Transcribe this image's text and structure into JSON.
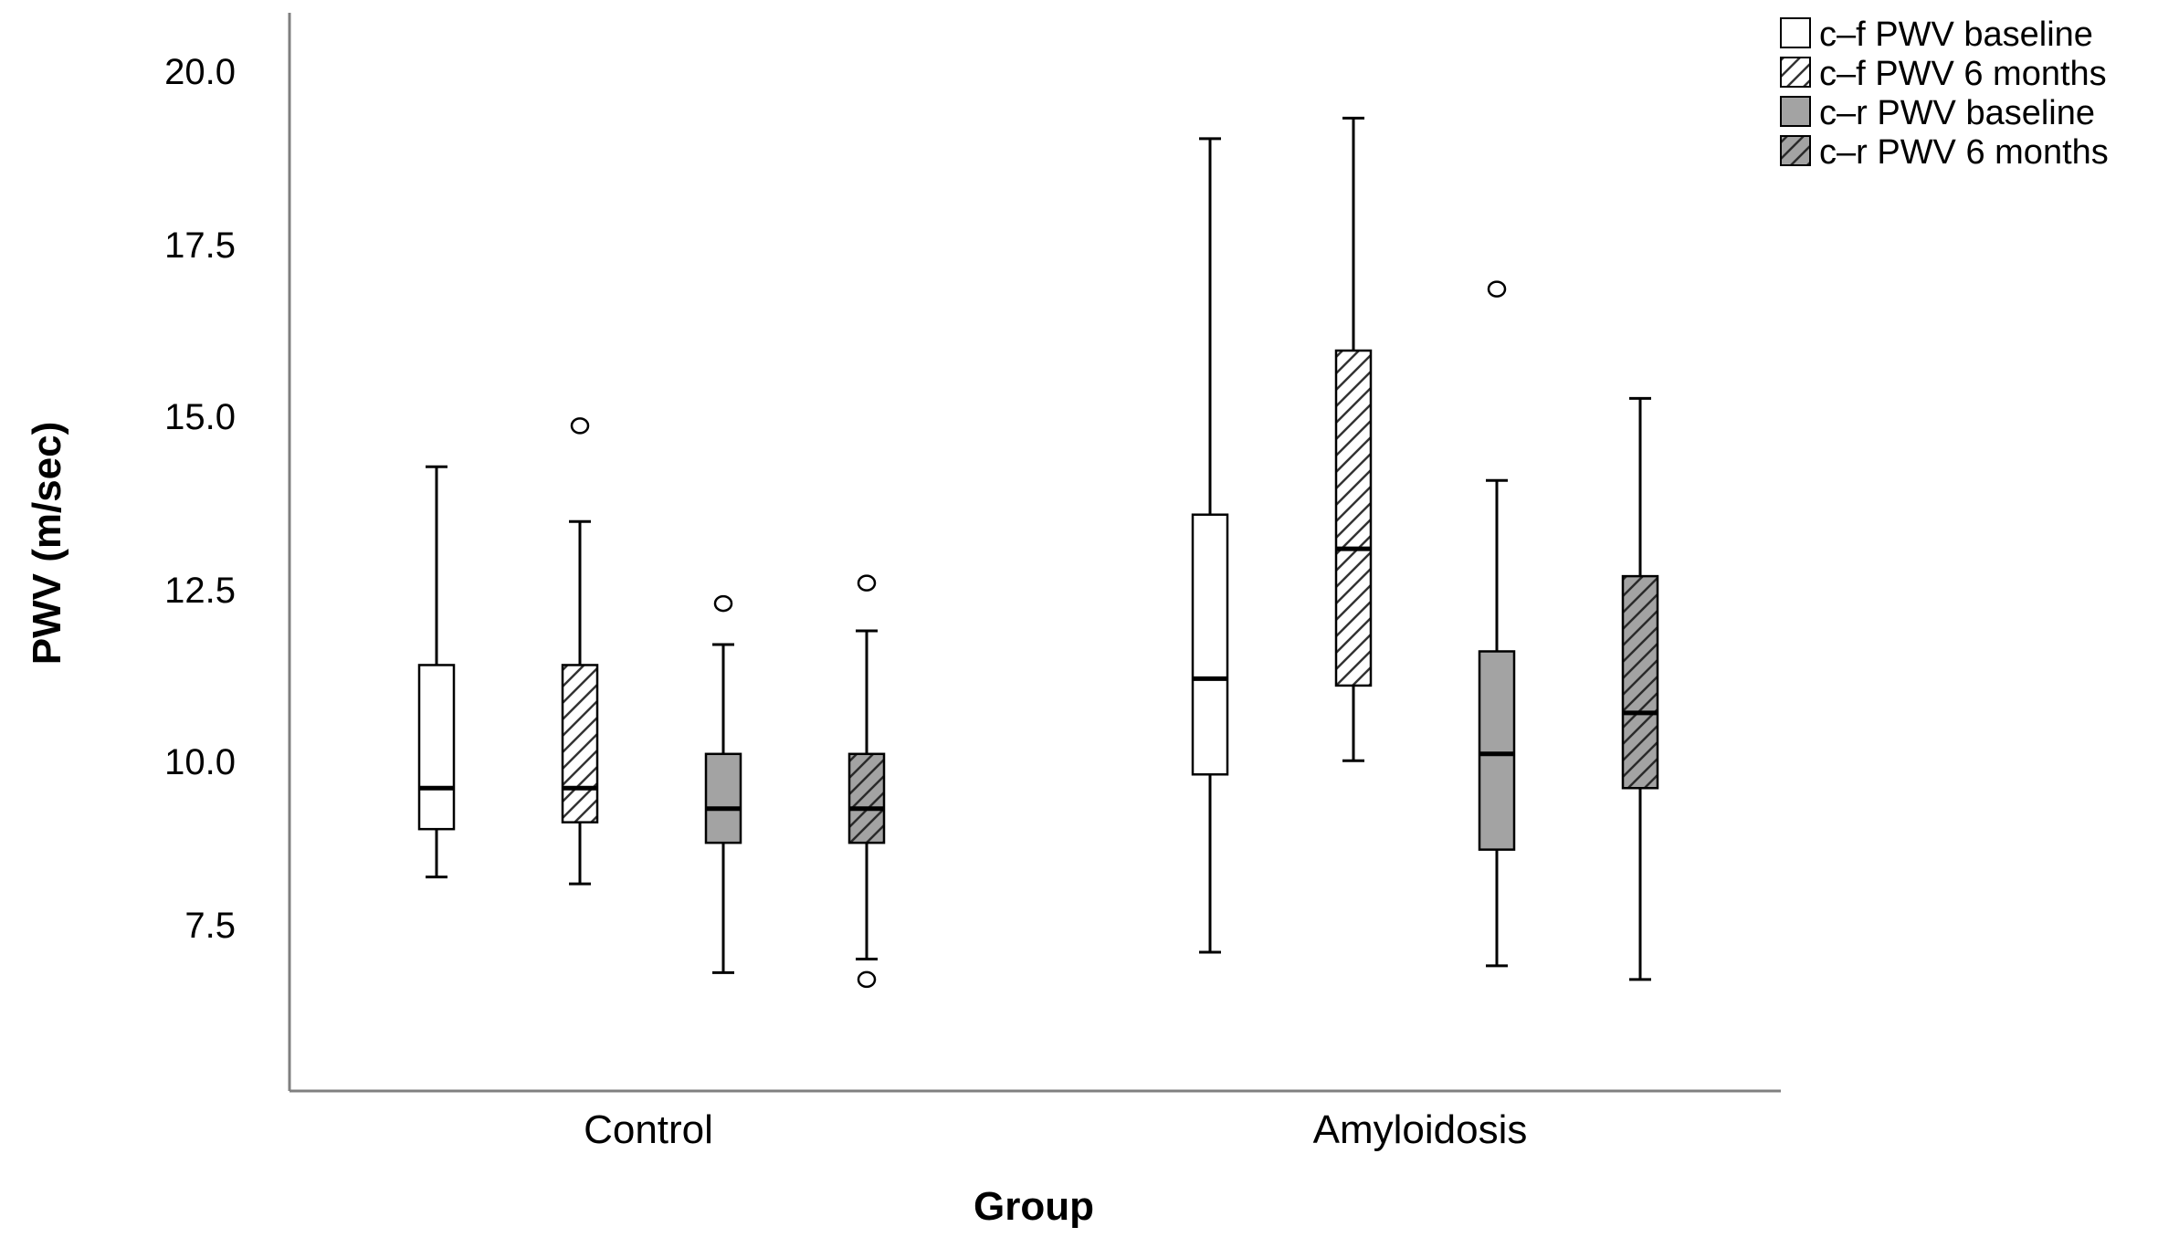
{
  "chart_data": {
    "type": "boxplot",
    "xlabel": "Group",
    "ylabel": "PWV (m/sec)",
    "ylim": [
      5.5,
      21.0
    ],
    "yticks": [
      7.5,
      10.0,
      12.5,
      15.0,
      17.5,
      20.0
    ],
    "ytick_labels": [
      "7.5",
      "10.0",
      "12.5",
      "15.0",
      "17.5",
      "20.0"
    ],
    "categories": [
      "Control",
      "Amyloidosis"
    ],
    "legend_position": "top-right",
    "series": [
      {
        "name": "c–f PWV baseline",
        "fill": "#ffffff",
        "pattern": "none",
        "boxes": [
          {
            "category": "Control",
            "whisker_low": 8.2,
            "q1": 8.9,
            "median": 9.5,
            "q3": 11.3,
            "whisker_high": 14.2,
            "outliers": []
          },
          {
            "category": "Amyloidosis",
            "whisker_low": 7.1,
            "q1": 9.7,
            "median": 11.1,
            "q3": 13.5,
            "whisker_high": 19.0,
            "outliers": []
          }
        ]
      },
      {
        "name": "c–f PWV 6 months",
        "fill": "#ffffff",
        "pattern": "hatch",
        "boxes": [
          {
            "category": "Control",
            "whisker_low": 8.1,
            "q1": 9.0,
            "median": 9.5,
            "q3": 11.3,
            "whisker_high": 13.4,
            "outliers": [
              14.8
            ]
          },
          {
            "category": "Amyloidosis",
            "whisker_low": 9.9,
            "q1": 11.0,
            "median": 13.0,
            "q3": 15.9,
            "whisker_high": 19.3,
            "outliers": []
          }
        ]
      },
      {
        "name": "c–r PWV baseline",
        "fill": "#a3a3a3",
        "pattern": "none",
        "boxes": [
          {
            "category": "Control",
            "whisker_low": 6.8,
            "q1": 8.7,
            "median": 9.2,
            "q3": 10.0,
            "whisker_high": 11.6,
            "outliers": [
              12.2
            ]
          },
          {
            "category": "Amyloidosis",
            "whisker_low": 6.9,
            "q1": 8.6,
            "median": 10.0,
            "q3": 11.5,
            "whisker_high": 14.0,
            "outliers": [
              16.8
            ]
          }
        ]
      },
      {
        "name": "c–r PWV 6 months",
        "fill": "#a3a3a3",
        "pattern": "hatch",
        "boxes": [
          {
            "category": "Control",
            "whisker_low": 7.0,
            "q1": 8.7,
            "median": 9.2,
            "q3": 10.0,
            "whisker_high": 11.8,
            "outliers": [
              12.5,
              6.7
            ]
          },
          {
            "category": "Amyloidosis",
            "whisker_low": 6.7,
            "q1": 9.5,
            "median": 10.6,
            "q3": 12.6,
            "whisker_high": 15.2,
            "outliers": []
          }
        ]
      }
    ]
  }
}
